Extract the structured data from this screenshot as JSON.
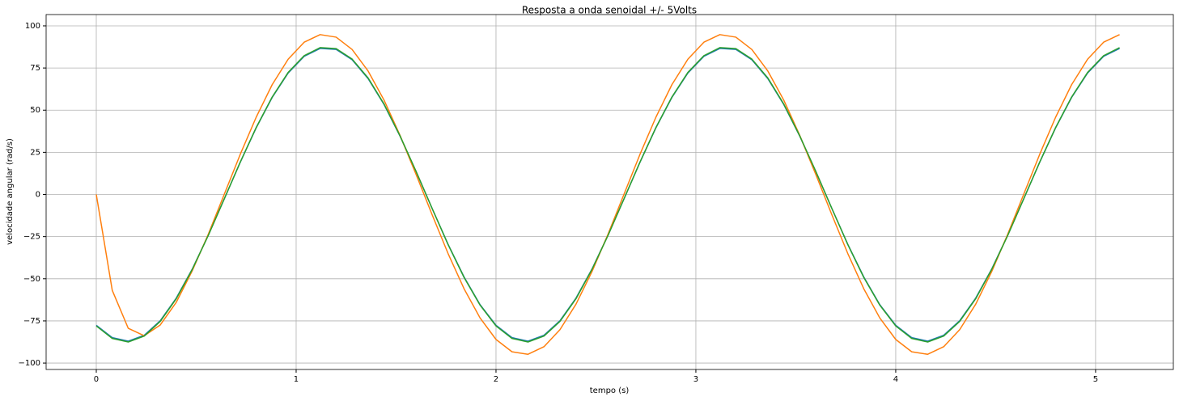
{
  "chart_data": {
    "type": "line",
    "title": "Resposta a onda senoidal +/- 5Volts",
    "x_label": "tempo (s)",
    "y_label": "velocidade angular (rad/s)",
    "x": [
      0,
      0.08,
      0.16,
      0.24,
      0.32,
      0.4,
      0.48,
      0.56,
      0.64,
      0.72,
      0.8,
      0.88,
      0.96,
      1.04,
      1.12,
      1.2,
      1.28,
      1.36,
      1.44,
      1.52,
      1.6,
      1.68,
      1.76,
      1.84,
      1.92,
      2,
      2.08,
      2.16,
      2.24,
      2.32,
      2.4,
      2.48,
      2.56,
      2.64,
      2.72,
      2.8,
      2.88,
      2.96,
      3.04,
      3.12,
      3.2,
      3.28,
      3.36,
      3.44,
      3.52,
      3.6,
      3.68,
      3.76,
      3.84,
      3.92,
      4,
      4.08,
      4.16,
      4.24,
      4.32,
      4.4,
      4.48,
      4.56,
      4.64,
      4.72,
      4.8,
      4.88,
      4.96,
      5.04,
      5.12
    ],
    "series": [
      {
        "color": "#1f77b4",
        "values": [
          -77.6,
          -84.9,
          -87.0,
          -83.5,
          -74.9,
          -61.5,
          -44.3,
          -24.3,
          -2.7,
          19.0,
          39.5,
          57.5,
          72.0,
          81.9,
          86.6,
          86.0,
          79.9,
          68.7,
          53.3,
          34.5,
          13.6,
          -8.2,
          -29.5,
          -48.9,
          -65.3,
          -77.6,
          -84.9,
          -87.0,
          -83.5,
          -74.9,
          -61.5,
          -44.3,
          -24.3,
          -2.7,
          19.0,
          39.5,
          57.5,
          72.0,
          81.9,
          86.6,
          86.0,
          79.9,
          68.7,
          53.3,
          34.5,
          13.6,
          -8.2,
          -29.5,
          -48.9,
          -65.3,
          -77.6,
          -84.9,
          -87.0,
          -83.5,
          -74.9,
          -61.5,
          -44.3,
          -24.3,
          -2.7,
          19.0,
          39.5,
          57.5,
          72.0,
          81.9,
          86.6
        ]
      },
      {
        "color": "#ff7f0e",
        "values": [
          0,
          -56.9,
          -79.4,
          -83.8,
          -77.4,
          -64.0,
          -45.3,
          -23.7,
          0,
          23.7,
          45.8,
          65.1,
          80.2,
          90.3,
          94.8,
          93.3,
          86.0,
          73.2,
          55.9,
          35.0,
          11.9,
          -11.9,
          -35.0,
          -55.9,
          -73.2,
          -86.0,
          -93.3,
          -94.8,
          -90.3,
          -80.2,
          -65.1,
          -45.8,
          -23.7,
          0,
          23.7,
          45.8,
          65.1,
          80.2,
          90.3,
          94.8,
          93.3,
          86.0,
          73.2,
          55.9,
          35.0,
          11.9,
          -11.9,
          -35.0,
          -55.9,
          -73.2,
          -86.0,
          -93.3,
          -94.8,
          -90.3,
          -80.2,
          -65.1,
          -45.8,
          -23.7,
          0,
          23.7,
          45.8,
          65.1,
          80.2,
          90.3,
          94.8
        ]
      },
      {
        "color": "#2ca02c",
        "values": [
          -78.0,
          -85.4,
          -87.5,
          -84.0,
          -75.3,
          -61.9,
          -44.5,
          -24.4,
          -2.7,
          19.1,
          39.7,
          57.8,
          72.4,
          82.3,
          87.1,
          86.5,
          80.3,
          69.1,
          53.6,
          34.7,
          13.7,
          -8.2,
          -29.7,
          -49.2,
          -65.6,
          -78.0,
          -85.4,
          -87.5,
          -84.0,
          -75.3,
          -61.9,
          -44.5,
          -24.4,
          -2.7,
          19.1,
          39.7,
          57.8,
          72.4,
          82.3,
          87.1,
          86.5,
          80.3,
          69.1,
          53.6,
          34.7,
          13.7,
          -8.2,
          -29.7,
          -49.2,
          -65.6,
          -78.0,
          -85.4,
          -87.5,
          -84.0,
          -75.3,
          -61.9,
          -44.5,
          -24.4,
          -2.7,
          19.1,
          39.7,
          57.8,
          72.4,
          82.3,
          87.1
        ]
      }
    ],
    "xlim": [
      -0.251,
      5.389
    ],
    "ylim": [
      -103.8,
      106.7
    ],
    "xticks": [
      0,
      1,
      2,
      3,
      4,
      5
    ],
    "yticks": [
      {
        "value": -100,
        "label": "−100"
      },
      {
        "value": -75,
        "label": "−75"
      },
      {
        "value": -50,
        "label": "−50"
      },
      {
        "value": -25,
        "label": "−25"
      },
      0,
      25,
      50,
      75,
      100
    ],
    "grid": true
  }
}
